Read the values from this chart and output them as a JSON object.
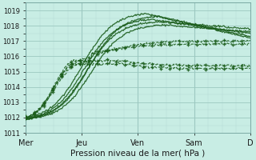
{
  "xlabel": "Pression niveau de la mer( hPa )",
  "bg_color": "#c8ede4",
  "grid_color_major": "#9cc8c0",
  "grid_color_minor": "#b4d8d2",
  "line_color": "#1a5c1a",
  "ylim": [
    1011,
    1019.5
  ],
  "yticks": [
    1011,
    1012,
    1013,
    1014,
    1015,
    1016,
    1017,
    1018,
    1019
  ],
  "day_labels": [
    "Mer",
    "Jeu",
    "Ven",
    "Sam",
    "D"
  ],
  "day_positions": [
    0,
    24,
    48,
    72,
    96
  ],
  "total_hours": 96,
  "figsize": [
    3.2,
    2.0
  ],
  "dpi": 100
}
